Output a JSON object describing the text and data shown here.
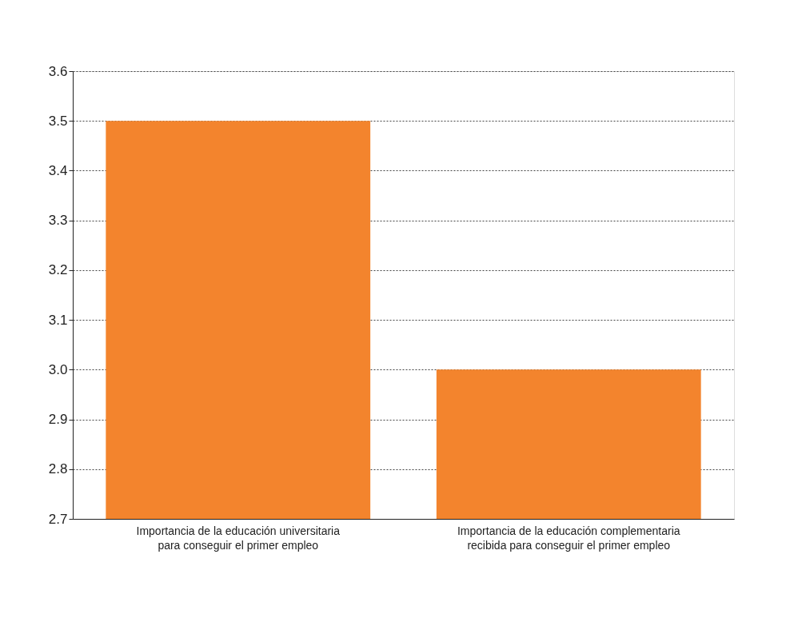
{
  "chart_data": {
    "type": "bar",
    "categories": [
      "Importancia de la educación universitaria\npara conseguir el primer empleo",
      "Importancia de la educación complementaria\nrecibida para conseguir el primer empleo"
    ],
    "values": [
      3.5,
      3.0
    ],
    "color": "#f3842d",
    "ylim": [
      2.7,
      3.6
    ],
    "yticks": [
      2.7,
      2.8,
      2.9,
      {
        "value": 3,
        "label": "3.0"
      },
      3.1,
      3.2,
      3.3,
      3.4,
      3.5,
      3.6
    ],
    "grid": "y"
  }
}
